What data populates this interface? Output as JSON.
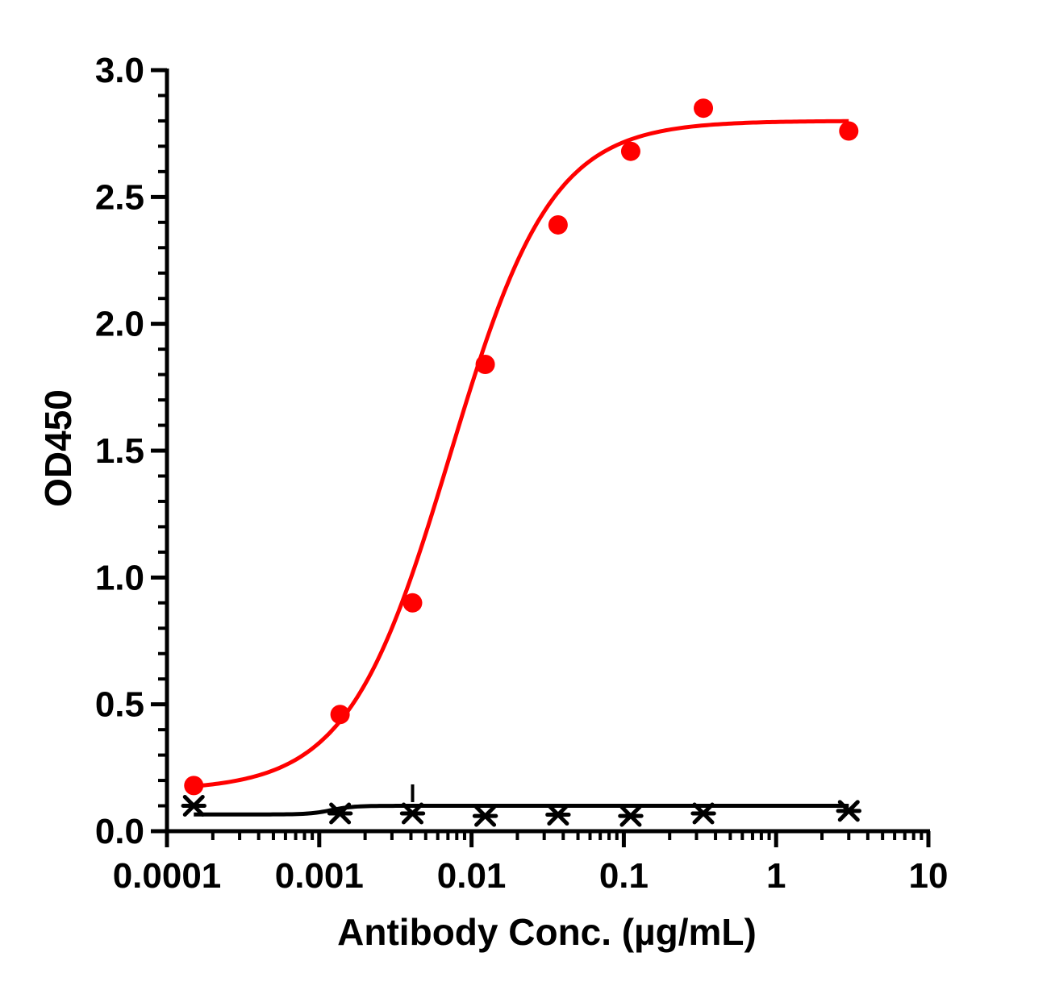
{
  "chart_data": {
    "type": "scatter",
    "title": "",
    "xlabel": "Antibody Conc. (µg/mL)",
    "ylabel": "OD450",
    "x_scale": "log",
    "xlim": [
      0.0001,
      10
    ],
    "ylim": [
      0,
      3.0
    ],
    "x_ticks": [
      0.0001,
      0.001,
      0.01,
      0.1,
      1,
      10
    ],
    "x_tick_labels": [
      "0.0001",
      "0.001",
      "0.01",
      "0.1",
      "1",
      "10"
    ],
    "y_ticks": [
      0,
      0.5,
      1.0,
      1.5,
      2.0,
      2.5,
      3.0
    ],
    "y_tick_labels": [
      "0.0",
      "0.5",
      "1.0",
      "1.5",
      "2.0",
      "2.5",
      "3.0"
    ],
    "grid": false,
    "legend": "none",
    "series": [
      {
        "color": "#ff0000",
        "marker": "circle",
        "x": [
          0.00015,
          0.00137,
          0.0041,
          0.0123,
          0.037,
          0.111,
          0.333,
          3.0
        ],
        "y": [
          0.18,
          0.46,
          0.9,
          1.84,
          2.39,
          2.68,
          2.85,
          2.76
        ],
        "fit": {
          "model": "4PL",
          "bottom": 0.16,
          "top": 2.8,
          "ec50": 0.0072,
          "hill": 1.3
        }
      },
      {
        "color": "#000000",
        "marker": "star",
        "x": [
          0.00015,
          0.00137,
          0.0041,
          0.0123,
          0.037,
          0.111,
          0.333,
          3.0
        ],
        "y": [
          0.1,
          0.07,
          0.07,
          0.06,
          0.065,
          0.06,
          0.07,
          0.08
        ],
        "fit": {
          "model": "4PL",
          "bottom": 0.066,
          "top": 0.1,
          "ec50": 0.0012,
          "hill": 6
        }
      }
    ]
  }
}
